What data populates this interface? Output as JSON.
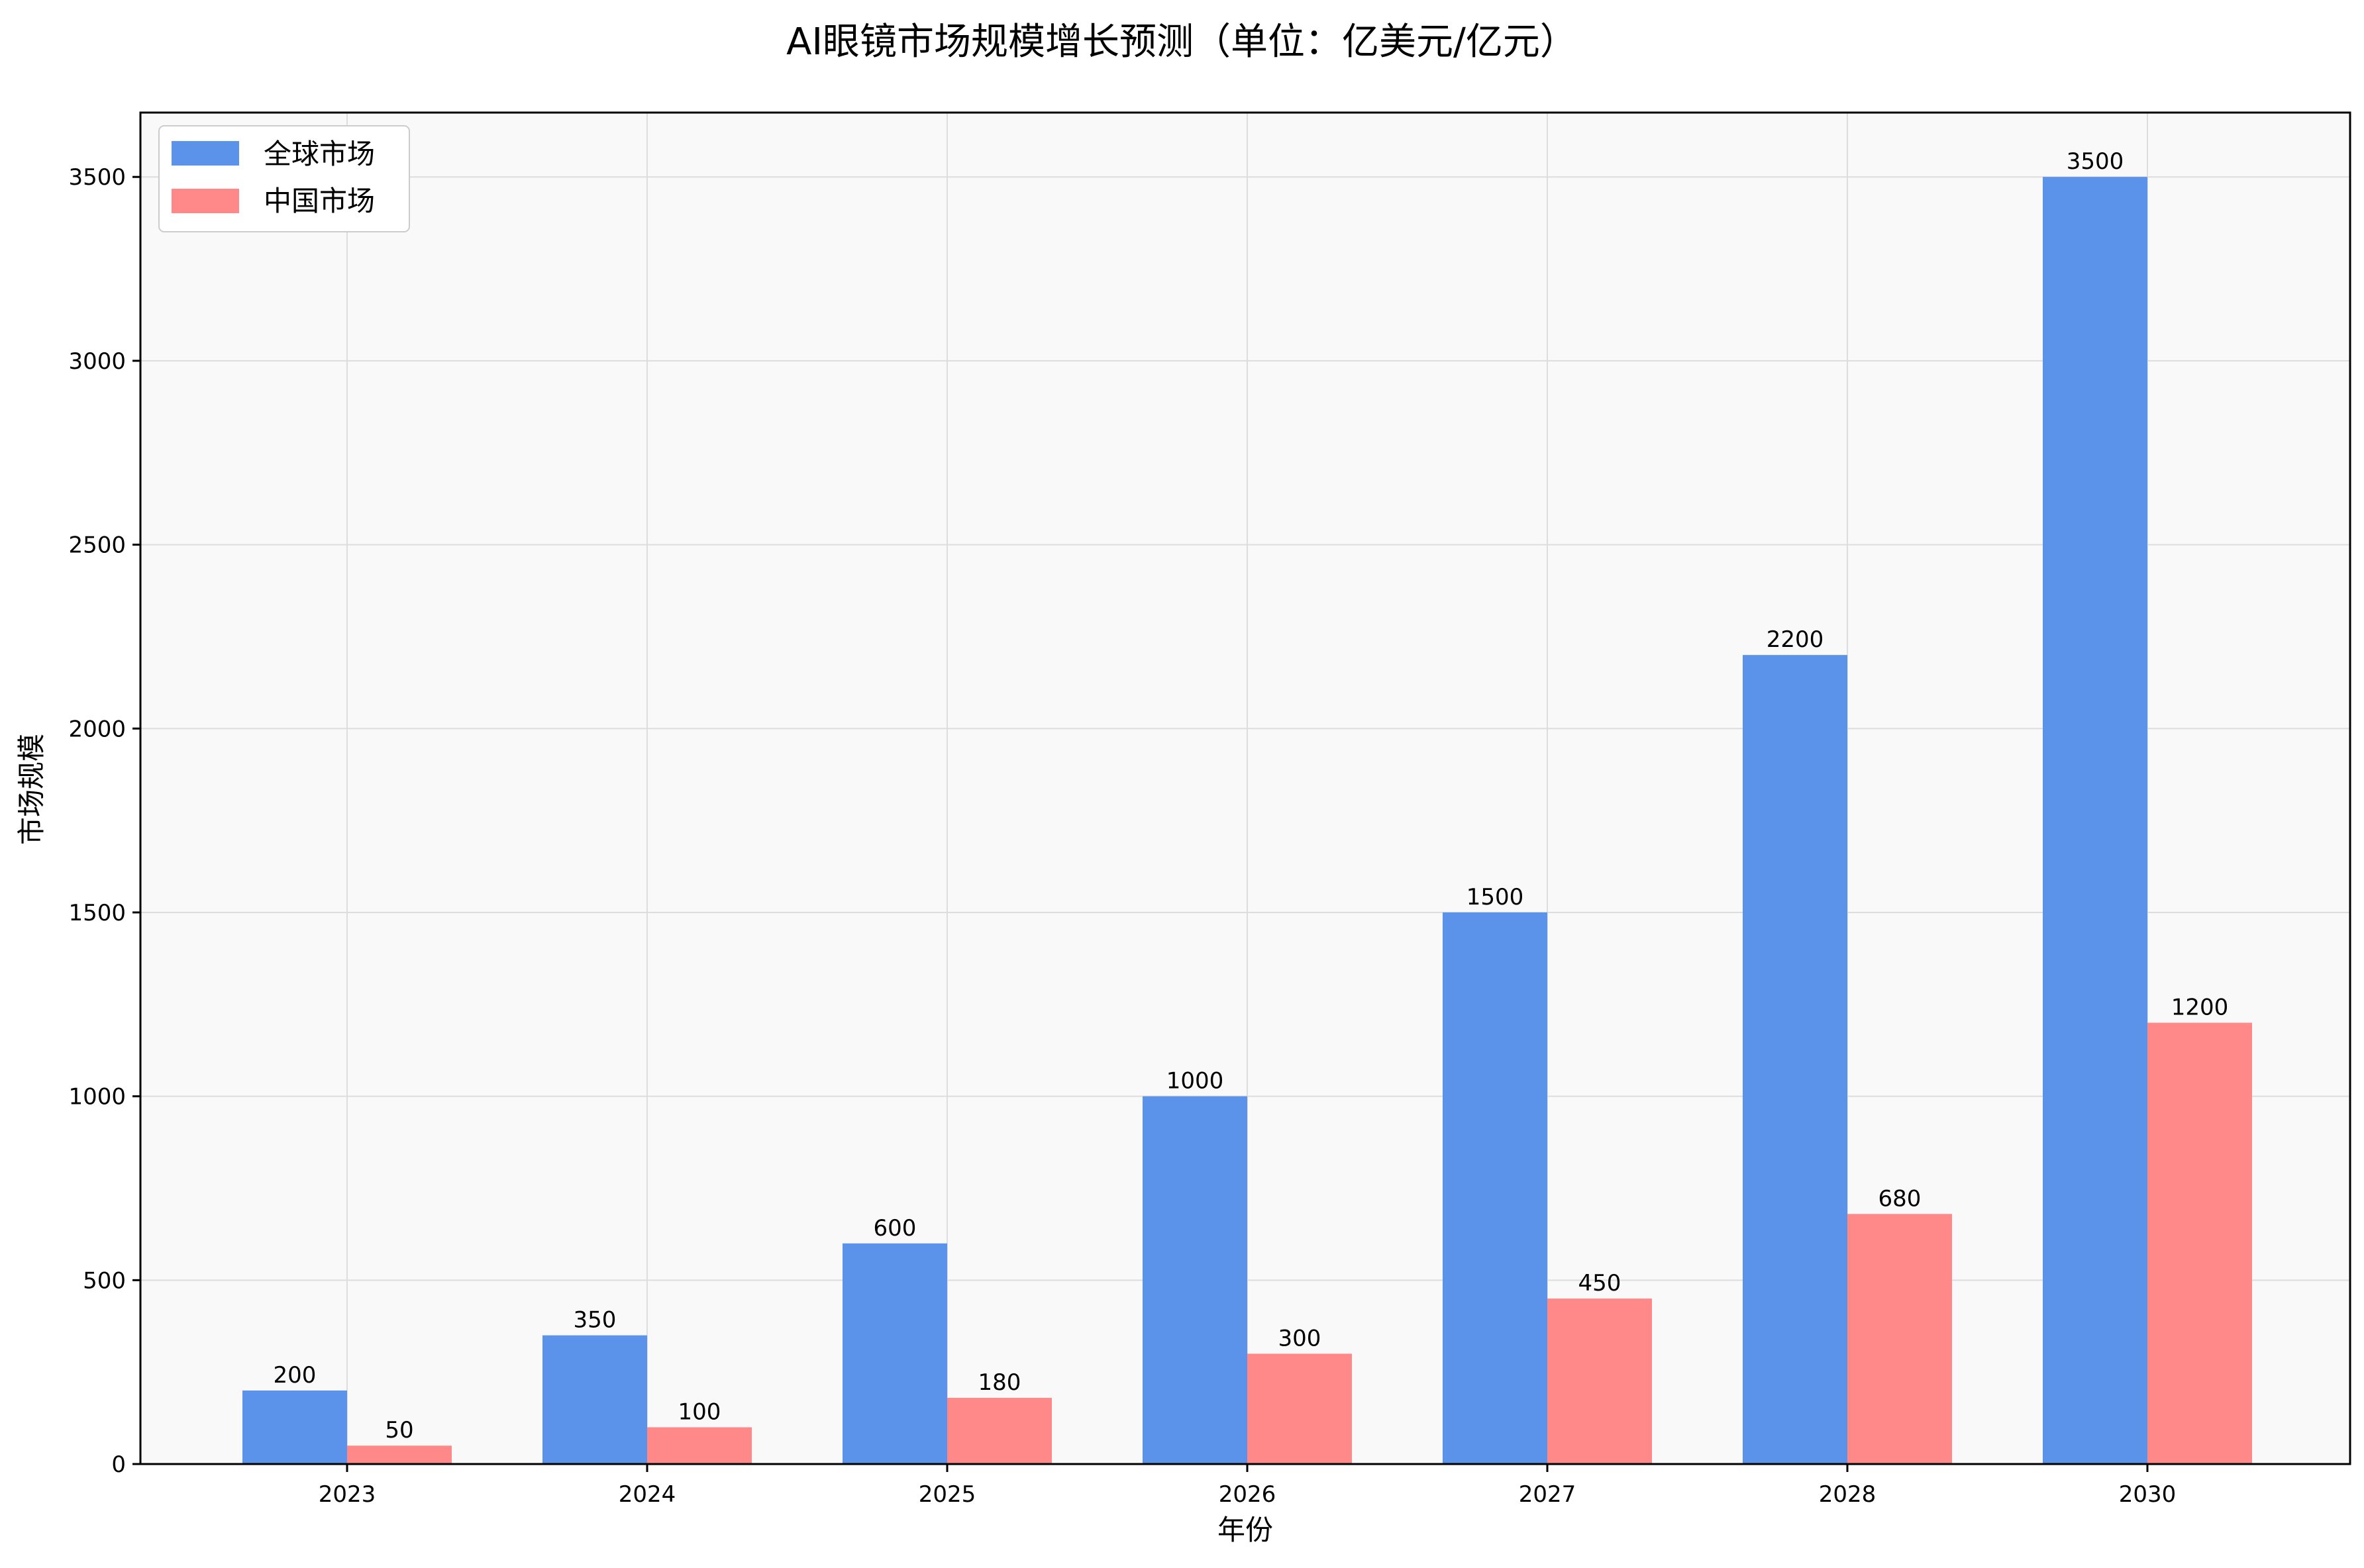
{
  "chart_data": {
    "type": "bar",
    "title": "AI眼镜市场规模增长预测（单位：亿美元/亿元）",
    "xlabel": "年份",
    "ylabel": "市场规模",
    "categories": [
      "2023",
      "2024",
      "2025",
      "2026",
      "2027",
      "2028",
      "2030"
    ],
    "series": [
      {
        "name": "全球市场",
        "values": [
          200,
          350,
          600,
          1000,
          1500,
          2200,
          3500
        ],
        "color": "#5b92ea"
      },
      {
        "name": "中国市场",
        "values": [
          50,
          100,
          180,
          300,
          450,
          680,
          1200
        ],
        "color": "#ff8888"
      }
    ],
    "ylim": [
      0,
      3675
    ],
    "yticks": [
      0,
      500,
      1000,
      1500,
      2000,
      2500,
      3000,
      3500
    ],
    "grid": true,
    "legend_position": "top-left"
  },
  "colors": {
    "plot_background": "#f9f9f9",
    "grid": "#dddddd",
    "axis": "#000000"
  }
}
